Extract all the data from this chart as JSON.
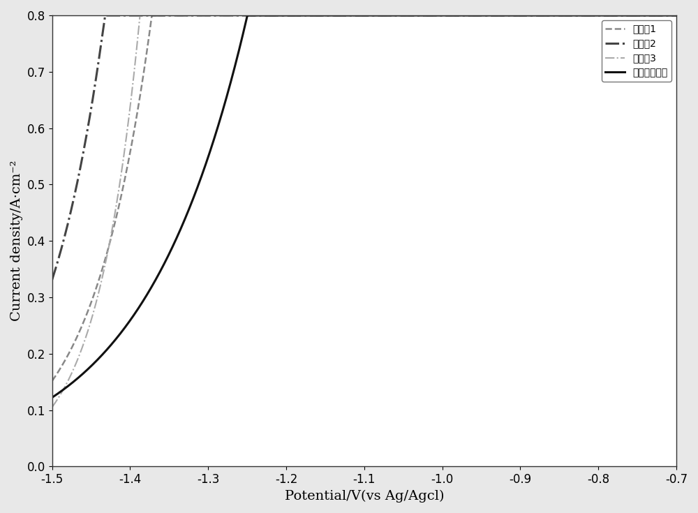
{
  "title": "",
  "xlabel": "Potential/V(vs Ag/Agcl)",
  "ylabel": "Current density/A·cm⁻²",
  "xlim": [
    -1.5,
    -0.7
  ],
  "ylim": [
    0,
    0.8
  ],
  "xticks": [
    -1.5,
    -1.4,
    -1.3,
    -1.2,
    -1.1,
    -1.0,
    -0.9,
    -0.8,
    -0.7
  ],
  "yticks": [
    0,
    0.1,
    0.2,
    0.3,
    0.4,
    0.5,
    0.6,
    0.7,
    0.8
  ],
  "curves": [
    {
      "label": "实施例1",
      "color": "#888888",
      "linestyle": "--",
      "linewidth": 1.8,
      "x0": -1.355,
      "beta": 13.0
    },
    {
      "label": "实施例2",
      "color": "#444444",
      "linestyle": "-.",
      "linewidth": 2.2,
      "x0": -1.415,
      "beta": 13.0
    },
    {
      "label": "实施例3",
      "color": "#aaaaaa",
      "linestyle": "-.",
      "linewidth": 1.5,
      "x0": -1.375,
      "beta": 18.0
    },
    {
      "label": "工业用泡沫镁",
      "color": "#111111",
      "linestyle": "-",
      "linewidth": 2.2,
      "x0": -1.22,
      "beta": 7.5
    }
  ],
  "legend_loc": "upper right",
  "legend_fontsize": 13,
  "axis_fontsize": 14,
  "tick_fontsize": 12,
  "background_color": "#e8e8e8"
}
